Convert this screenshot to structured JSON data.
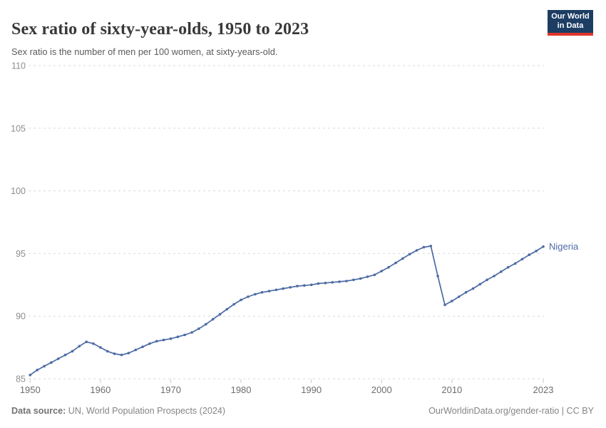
{
  "header": {
    "title": "Sex ratio of sixty-year-olds, 1950 to 2023",
    "subtitle": "Sex ratio is the number of men per 100 women, at sixty-years-old.",
    "logo": {
      "line1": "Our World",
      "line2": "in Data"
    }
  },
  "chart_data": {
    "type": "line",
    "title": "Sex ratio of sixty-year-olds, 1950 to 2023",
    "subtitle": "Sex ratio is the number of men per 100 women, at sixty-years-old.",
    "xlabel": "",
    "ylabel": "",
    "xlim": [
      1950,
      2023
    ],
    "ylim": [
      85,
      110
    ],
    "x_ticks": [
      1950,
      1960,
      1970,
      1980,
      1990,
      2000,
      2010,
      2023
    ],
    "y_ticks": [
      85,
      90,
      95,
      100,
      105,
      110
    ],
    "grid": "horizontal-dashed",
    "legend_position": "end-of-line",
    "series": [
      {
        "name": "Nigeria",
        "color": "#4c6ba5",
        "x": [
          1950,
          1951,
          1952,
          1953,
          1954,
          1955,
          1956,
          1957,
          1958,
          1959,
          1960,
          1961,
          1962,
          1963,
          1964,
          1965,
          1966,
          1967,
          1968,
          1969,
          1970,
          1971,
          1972,
          1973,
          1974,
          1975,
          1976,
          1977,
          1978,
          1979,
          1980,
          1981,
          1982,
          1983,
          1984,
          1985,
          1986,
          1987,
          1988,
          1989,
          1990,
          1991,
          1992,
          1993,
          1994,
          1995,
          1996,
          1997,
          1998,
          1999,
          2000,
          2001,
          2002,
          2003,
          2004,
          2005,
          2006,
          2007,
          2008,
          2009,
          2010,
          2011,
          2012,
          2013,
          2014,
          2015,
          2016,
          2017,
          2018,
          2019,
          2020,
          2021,
          2022,
          2023
        ],
        "values": [
          85.3,
          85.7,
          86.0,
          86.3,
          86.6,
          86.9,
          87.2,
          87.6,
          87.95,
          87.8,
          87.5,
          87.2,
          87.0,
          86.9,
          87.05,
          87.3,
          87.55,
          87.8,
          88.0,
          88.1,
          88.2,
          88.35,
          88.5,
          88.7,
          89.0,
          89.35,
          89.75,
          90.15,
          90.55,
          90.95,
          91.3,
          91.55,
          91.75,
          91.9,
          92.0,
          92.1,
          92.2,
          92.3,
          92.4,
          92.45,
          92.5,
          92.6,
          92.65,
          92.7,
          92.75,
          92.8,
          92.9,
          93.0,
          93.15,
          93.3,
          93.6,
          93.9,
          94.25,
          94.6,
          94.95,
          95.25,
          95.5,
          95.6,
          93.2,
          90.9,
          91.2,
          91.55,
          91.9,
          92.2,
          92.55,
          92.9,
          93.2,
          93.55,
          93.9,
          94.2,
          94.55,
          94.9,
          95.2,
          95.55
        ]
      }
    ]
  },
  "footer": {
    "source_label": "Data source:",
    "source_value": " UN, World Population Prospects (2024)",
    "credit": "OurWorldinData.org/gender-ratio | CC BY"
  },
  "colors": {
    "line": "#4c6ba5",
    "gridline": "#dadada",
    "axis_tick": "#c8c8c8",
    "y_label": "#8e8e8e",
    "x_label": "#6e6e6e",
    "logo_bg": "#1d3d63",
    "logo_accent": "#e0362c"
  }
}
